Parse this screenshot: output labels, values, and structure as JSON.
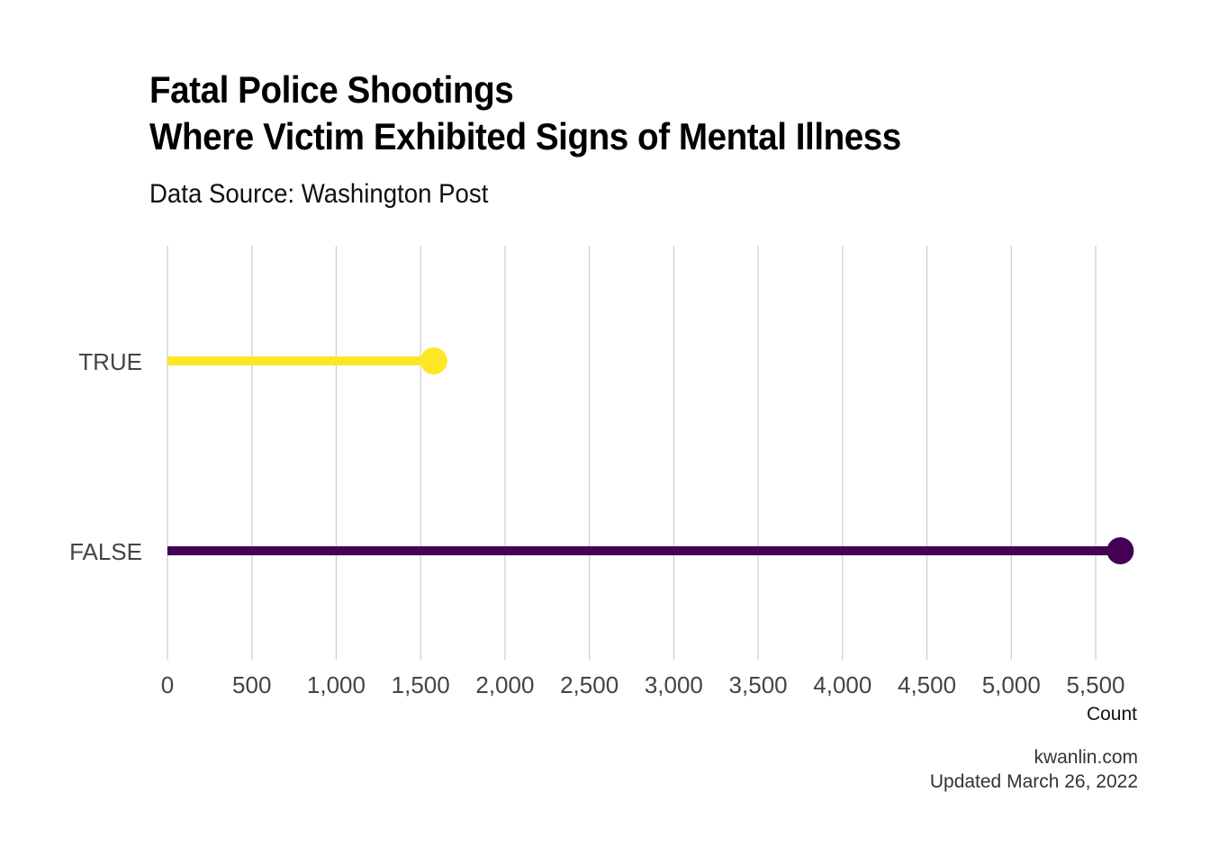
{
  "title_line1": "Fatal Police Shootings",
  "title_line2": "Where Victim Exhibited Signs of Mental Illness",
  "subtitle": "Data Source: Washington Post",
  "footer": {
    "site": "kwanlin.com",
    "updated": "Updated March 26, 2022"
  },
  "chart_data": {
    "type": "lollipop",
    "orientation": "horizontal",
    "title": "Fatal Police Shootings Where Victim Exhibited Signs of Mental Illness",
    "subtitle": "Data Source: Washington Post",
    "xlabel": "Count",
    "ylabel": "",
    "categories": [
      "TRUE",
      "FALSE"
    ],
    "values": [
      1578,
      5646
    ],
    "colors": [
      "#FDE725",
      "#440154"
    ],
    "xlim": [
      0,
      5750
    ],
    "xticks": [
      0,
      500,
      1000,
      1500,
      2000,
      2500,
      3000,
      3500,
      4000,
      4500,
      5000,
      5500
    ],
    "xtick_labels": [
      "0",
      "500",
      "1,000",
      "1,500",
      "2,000",
      "2,500",
      "3,000",
      "3,500",
      "4,000",
      "4,500",
      "5,000",
      "5,500"
    ],
    "grid": "vertical",
    "legend": "none"
  }
}
